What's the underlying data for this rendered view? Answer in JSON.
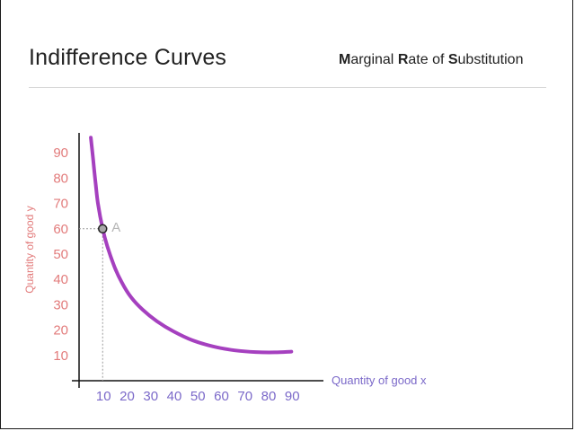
{
  "slide": {
    "title": "Indifference Curves",
    "subtitle": {
      "parts": [
        {
          "text": "M",
          "bold": true
        },
        {
          "text": "arginal ",
          "bold": false
        },
        {
          "text": "R",
          "bold": true
        },
        {
          "text": "ate of ",
          "bold": false
        },
        {
          "text": "S",
          "bold": true
        },
        {
          "text": "ubstitution",
          "bold": false
        }
      ]
    }
  },
  "colors": {
    "curve": "#9b2bb8",
    "y_axis_text": "#e27b7b",
    "x_axis_text": "#7b69c9",
    "point_label": "#b5b5b5"
  },
  "chart_data": {
    "type": "line",
    "xlabel": "Quantity of good x",
    "ylabel": "Quantity of good y",
    "x_ticks": [
      10,
      20,
      30,
      40,
      50,
      60,
      70,
      80,
      90
    ],
    "y_ticks": [
      10,
      20,
      30,
      40,
      50,
      60,
      70,
      80,
      90
    ],
    "xlim": [
      0,
      100
    ],
    "ylim": [
      0,
      100
    ],
    "grid": false,
    "series": [
      {
        "x": [
          5,
          6,
          7,
          8,
          10,
          12,
          15,
          18,
          22,
          27,
          33,
          40,
          48,
          57,
          66,
          75,
          83,
          90
        ],
        "y": [
          96,
          87,
          78,
          70,
          60,
          53,
          45,
          39,
          33,
          28,
          23.5,
          19.5,
          16,
          13.5,
          12,
          11.3,
          11.2,
          11.5
        ]
      }
    ],
    "points": [
      {
        "label": "A",
        "x": 10,
        "y": 60
      }
    ]
  }
}
